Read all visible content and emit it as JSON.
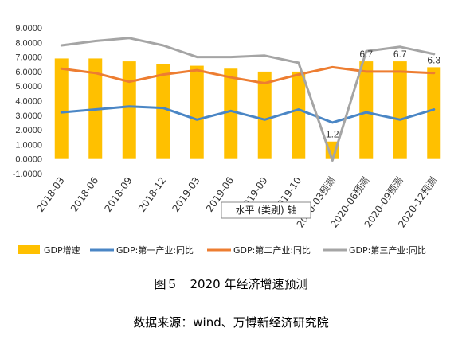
{
  "chart_data": {
    "type": "bar",
    "categories": [
      "2018-03",
      "2018-06",
      "2018-09",
      "2018-12",
      "2019-03",
      "2019-06",
      "2019-09",
      "2019-10",
      "2020-03预测",
      "2020-06预测",
      "2020-09预测",
      "2020-12预测"
    ],
    "y_ticks": [
      "9.0000",
      "8.0000",
      "7.0000",
      "6.0000",
      "5.0000",
      "4.0000",
      "3.0000",
      "2.0000",
      "1.0000",
      "0.0000",
      "-1.0000"
    ],
    "ylim": [
      -1,
      9
    ],
    "xlabel": "水平 (类别) 轴",
    "legend_position": "bottom",
    "series": [
      {
        "name": "GDP增速",
        "kind": "bar",
        "color": "#FFC000",
        "values": [
          6.9,
          6.9,
          6.7,
          6.5,
          6.4,
          6.2,
          6.0,
          6.0,
          1.2,
          6.7,
          6.7,
          6.3
        ],
        "data_labels": [
          "",
          "",
          "",
          "",
          "",
          "",
          "",
          "",
          "1.2",
          "6.7",
          "6.7",
          "6.3"
        ]
      },
      {
        "name": "GDP:第一产业:同比",
        "kind": "line",
        "color": "#4A86C5",
        "values": [
          3.2,
          3.4,
          3.6,
          3.5,
          2.7,
          3.3,
          2.7,
          3.4,
          2.5,
          3.2,
          2.7,
          3.4
        ]
      },
      {
        "name": "GDP:第二产业:同比",
        "kind": "line",
        "color": "#ED7D31",
        "values": [
          6.2,
          5.9,
          5.3,
          5.8,
          6.1,
          5.6,
          5.2,
          5.8,
          6.3,
          6.0,
          6.0,
          5.9
        ]
      },
      {
        "name": "GDP:第三产业:同比",
        "kind": "line",
        "color": "#A5A5A5",
        "values": [
          7.8,
          8.1,
          8.3,
          7.8,
          7.0,
          7.0,
          7.1,
          6.6,
          -0.1,
          7.4,
          7.7,
          7.2
        ]
      }
    ]
  },
  "captions": {
    "figure": "图５　2020 年经济增速预测",
    "source": "数据来源：wind、万博新经济研究院"
  }
}
